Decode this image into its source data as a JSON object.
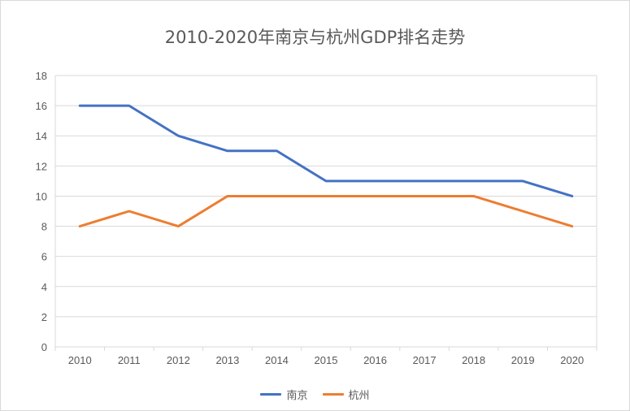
{
  "chart_data": {
    "type": "line",
    "title": "2010-2020年南京与杭州GDP排名走势",
    "categories": [
      "2010",
      "2011",
      "2012",
      "2013",
      "2014",
      "2015",
      "2016",
      "2017",
      "2018",
      "2019",
      "2020"
    ],
    "ylim": [
      0,
      18
    ],
    "yticks": [
      0,
      2,
      4,
      6,
      8,
      10,
      12,
      14,
      16,
      18
    ],
    "grid": true,
    "legend_position": "bottom",
    "series": [
      {
        "name": "南京",
        "color": "#4472c4",
        "values": [
          16,
          16,
          14,
          13,
          13,
          11,
          11,
          11,
          11,
          11,
          10
        ]
      },
      {
        "name": "杭州",
        "color": "#ed7d31",
        "values": [
          8,
          9,
          8,
          10,
          10,
          10,
          10,
          10,
          10,
          9,
          8
        ]
      }
    ]
  }
}
